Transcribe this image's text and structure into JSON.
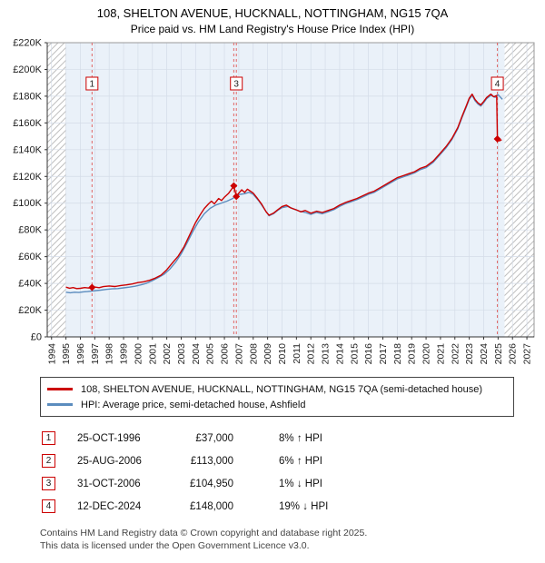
{
  "title": "108, SHELTON AVENUE, HUCKNALL, NOTTINGHAM, NG15 7QA",
  "subtitle": "Price paid vs. HM Land Registry's House Price Index (HPI)",
  "chart_data": {
    "type": "line",
    "x_domain": [
      1993.7,
      2027.5
    ],
    "ylim": [
      0,
      220000
    ],
    "x_ticks": [
      1994,
      1995,
      1996,
      1997,
      1998,
      1999,
      2000,
      2001,
      2002,
      2003,
      2004,
      2005,
      2006,
      2007,
      2008,
      2009,
      2010,
      2011,
      2012,
      2013,
      2014,
      2015,
      2016,
      2017,
      2018,
      2019,
      2020,
      2021,
      2022,
      2023,
      2024,
      2025,
      2026,
      2027
    ],
    "y_ticks": [
      "£0",
      "£20K",
      "£40K",
      "£60K",
      "£80K",
      "£100K",
      "£120K",
      "£140K",
      "£160K",
      "£180K",
      "£200K",
      "£220K"
    ],
    "shaded_region": [
      1995.0,
      2025.45
    ],
    "hatch_regions": [
      [
        1993.7,
        1995.0
      ],
      [
        2025.45,
        2027.5
      ]
    ],
    "colors": {
      "band": "#eaf1f9",
      "grid": "#d4dce8",
      "sale_line": "#e06666",
      "marker": "#cc0000",
      "axis": "#333333",
      "hatch": "#bfbfbf"
    },
    "series": [
      {
        "name": "108, SHELTON AVENUE, HUCKNALL, NOTTINGHAM, NG15 7QA (semi-detached house)",
        "color": "#cc0000",
        "points": [
          [
            1995.0,
            37200
          ],
          [
            1995.25,
            36400
          ],
          [
            1995.5,
            36900
          ],
          [
            1995.75,
            36100
          ],
          [
            1996.0,
            36300
          ],
          [
            1996.3,
            36900
          ],
          [
            1996.6,
            36500
          ],
          [
            1996.81,
            37000
          ],
          [
            1997.0,
            37300
          ],
          [
            1997.3,
            36800
          ],
          [
            1997.6,
            37600
          ],
          [
            1998.0,
            38100
          ],
          [
            1998.4,
            37700
          ],
          [
            1998.8,
            38400
          ],
          [
            1999.2,
            38900
          ],
          [
            1999.6,
            39600
          ],
          [
            2000.0,
            40600
          ],
          [
            2000.4,
            41200
          ],
          [
            2000.8,
            42300
          ],
          [
            2001.2,
            43900
          ],
          [
            2001.6,
            46200
          ],
          [
            2002.0,
            50200
          ],
          [
            2002.4,
            55500
          ],
          [
            2002.8,
            60500
          ],
          [
            2003.2,
            67500
          ],
          [
            2003.6,
            76500
          ],
          [
            2004.0,
            85500
          ],
          [
            2004.3,
            91000
          ],
          [
            2004.6,
            96000
          ],
          [
            2004.9,
            99500
          ],
          [
            2005.1,
            101500
          ],
          [
            2005.3,
            99500
          ],
          [
            2005.6,
            103500
          ],
          [
            2005.8,
            102000
          ],
          [
            2006.0,
            104500
          ],
          [
            2006.3,
            107500
          ],
          [
            2006.5,
            110500
          ],
          [
            2006.65,
            113000
          ],
          [
            2006.83,
            104950
          ],
          [
            2007.0,
            107500
          ],
          [
            2007.2,
            110000
          ],
          [
            2007.4,
            108000
          ],
          [
            2007.6,
            110500
          ],
          [
            2007.8,
            109000
          ],
          [
            2008.0,
            107500
          ],
          [
            2008.3,
            103500
          ],
          [
            2008.6,
            99000
          ],
          [
            2008.9,
            93500
          ],
          [
            2009.1,
            91000
          ],
          [
            2009.4,
            92500
          ],
          [
            2009.7,
            95000
          ],
          [
            2010.0,
            97500
          ],
          [
            2010.3,
            98500
          ],
          [
            2010.6,
            96500
          ],
          [
            2011.0,
            95000
          ],
          [
            2011.3,
            93500
          ],
          [
            2011.6,
            94500
          ],
          [
            2012.0,
            92500
          ],
          [
            2012.4,
            94000
          ],
          [
            2012.8,
            93000
          ],
          [
            2013.2,
            94500
          ],
          [
            2013.6,
            96000
          ],
          [
            2014.0,
            98500
          ],
          [
            2014.4,
            100500
          ],
          [
            2014.8,
            102000
          ],
          [
            2015.2,
            103500
          ],
          [
            2015.6,
            105500
          ],
          [
            2016.0,
            107500
          ],
          [
            2016.4,
            109000
          ],
          [
            2016.8,
            111500
          ],
          [
            2017.2,
            114000
          ],
          [
            2017.6,
            116500
          ],
          [
            2018.0,
            119000
          ],
          [
            2018.4,
            120500
          ],
          [
            2018.8,
            122000
          ],
          [
            2019.2,
            123500
          ],
          [
            2019.6,
            126000
          ],
          [
            2020.0,
            127500
          ],
          [
            2020.5,
            131500
          ],
          [
            2021.0,
            137500
          ],
          [
            2021.4,
            142500
          ],
          [
            2021.8,
            148500
          ],
          [
            2022.2,
            156500
          ],
          [
            2022.5,
            165000
          ],
          [
            2022.8,
            173000
          ],
          [
            2023.0,
            178500
          ],
          [
            2023.2,
            181500
          ],
          [
            2023.4,
            177500
          ],
          [
            2023.6,
            175000
          ],
          [
            2023.8,
            173500
          ],
          [
            2024.0,
            176000
          ],
          [
            2024.2,
            179000
          ],
          [
            2024.5,
            181500
          ],
          [
            2024.7,
            179500
          ],
          [
            2024.9,
            180500
          ],
          [
            2024.95,
            148000
          ],
          [
            2025.1,
            146500
          ],
          [
            2025.25,
            147500
          ]
        ]
      },
      {
        "name": "HPI: Average price, semi-detached house, Ashfield",
        "color": "#5b8cbe",
        "points": [
          [
            1995.0,
            33400
          ],
          [
            1995.3,
            33000
          ],
          [
            1995.6,
            33400
          ],
          [
            1995.9,
            33200
          ],
          [
            1996.2,
            33700
          ],
          [
            1996.5,
            33900
          ],
          [
            1996.81,
            34250
          ],
          [
            1997.1,
            34600
          ],
          [
            1997.4,
            35000
          ],
          [
            1997.8,
            35500
          ],
          [
            1998.2,
            35900
          ],
          [
            1998.6,
            36100
          ],
          [
            1999.0,
            36700
          ],
          [
            1999.4,
            37200
          ],
          [
            1999.8,
            37900
          ],
          [
            2000.2,
            38900
          ],
          [
            2000.6,
            40100
          ],
          [
            2001.0,
            42100
          ],
          [
            2001.4,
            44300
          ],
          [
            2001.8,
            46700
          ],
          [
            2002.2,
            50600
          ],
          [
            2002.6,
            55600
          ],
          [
            2003.0,
            62100
          ],
          [
            2003.4,
            70100
          ],
          [
            2003.8,
            78600
          ],
          [
            2004.2,
            86100
          ],
          [
            2004.6,
            92100
          ],
          [
            2005.0,
            96100
          ],
          [
            2005.4,
            98600
          ],
          [
            2005.8,
            100100
          ],
          [
            2006.2,
            101600
          ],
          [
            2006.6,
            103600
          ],
          [
            2006.83,
            106000
          ],
          [
            2007.1,
            106600
          ],
          [
            2007.4,
            107100
          ],
          [
            2007.7,
            108100
          ],
          [
            2008.0,
            106600
          ],
          [
            2008.4,
            101600
          ],
          [
            2008.8,
            95100
          ],
          [
            2009.1,
            90600
          ],
          [
            2009.4,
            92100
          ],
          [
            2009.7,
            94600
          ],
          [
            2010.0,
            96600
          ],
          [
            2010.4,
            97600
          ],
          [
            2010.8,
            95600
          ],
          [
            2011.2,
            94100
          ],
          [
            2011.6,
            93100
          ],
          [
            2012.0,
            91600
          ],
          [
            2012.4,
            93100
          ],
          [
            2012.8,
            92100
          ],
          [
            2013.2,
            93600
          ],
          [
            2013.6,
            95100
          ],
          [
            2014.0,
            97600
          ],
          [
            2014.4,
            99600
          ],
          [
            2014.8,
            101100
          ],
          [
            2015.2,
            102600
          ],
          [
            2015.6,
            104600
          ],
          [
            2016.0,
            106600
          ],
          [
            2016.4,
            108100
          ],
          [
            2016.8,
            110600
          ],
          [
            2017.2,
            113100
          ],
          [
            2017.6,
            115600
          ],
          [
            2018.0,
            118100
          ],
          [
            2018.4,
            119600
          ],
          [
            2018.8,
            121100
          ],
          [
            2019.2,
            122600
          ],
          [
            2019.6,
            125100
          ],
          [
            2020.0,
            126600
          ],
          [
            2020.5,
            130600
          ],
          [
            2021.0,
            136600
          ],
          [
            2021.4,
            141600
          ],
          [
            2021.8,
            147600
          ],
          [
            2022.2,
            155600
          ],
          [
            2022.5,
            164100
          ],
          [
            2022.8,
            172100
          ],
          [
            2023.0,
            177600
          ],
          [
            2023.2,
            180600
          ],
          [
            2023.4,
            176600
          ],
          [
            2023.6,
            174100
          ],
          [
            2023.8,
            172600
          ],
          [
            2024.0,
            175100
          ],
          [
            2024.2,
            178100
          ],
          [
            2024.5,
            180600
          ],
          [
            2024.8,
            179100
          ],
          [
            2025.0,
            181100
          ],
          [
            2025.3,
            177600
          ]
        ]
      }
    ],
    "sales": [
      {
        "n": "1",
        "x": 1996.81,
        "y": 37000,
        "label_visible": true
      },
      {
        "n": "2",
        "x": 2006.65,
        "y": 113000,
        "label_visible": false
      },
      {
        "n": "3",
        "x": 2006.83,
        "y": 104950,
        "label_visible": true
      },
      {
        "n": "4",
        "x": 2024.95,
        "y": 148000,
        "label_visible": true
      }
    ]
  },
  "transactions": {
    "rows": [
      {
        "n": "1",
        "date": "25-OCT-1996",
        "price": "£37,000",
        "hpi": "8% ↑ HPI"
      },
      {
        "n": "2",
        "date": "25-AUG-2006",
        "price": "£113,000",
        "hpi": "6% ↑ HPI"
      },
      {
        "n": "3",
        "date": "31-OCT-2006",
        "price": "£104,950",
        "hpi": "1% ↓ HPI"
      },
      {
        "n": "4",
        "date": "12-DEC-2024",
        "price": "£148,000",
        "hpi": "19% ↓ HPI"
      }
    ]
  },
  "footer": {
    "line1": "Contains HM Land Registry data © Crown copyright and database right 2025.",
    "line2": "This data is licensed under the Open Government Licence v3.0."
  }
}
